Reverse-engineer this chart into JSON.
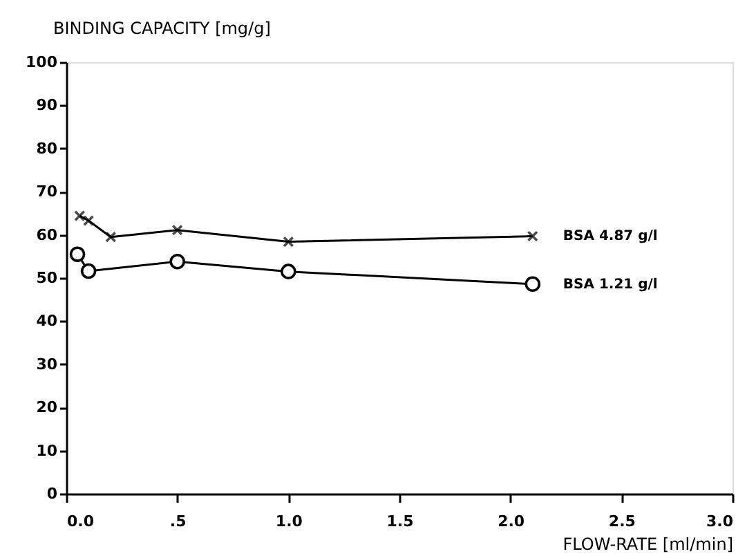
{
  "chart_data": {
    "type": "line",
    "xlabel": "FLOW-RATE [ml/min]",
    "ylabel": "BINDING CAPACITY [mg/g]",
    "xlim": [
      0,
      3
    ],
    "xticks": [
      {
        "value": 0,
        "label": "0.0"
      },
      {
        "value": 0.5,
        "label": ".5"
      },
      {
        "value": 1,
        "label": "1.0"
      },
      1.5,
      {
        "value": 2,
        "label": "2.0"
      },
      2.5,
      {
        "value": 3,
        "label": "3.0"
      }
    ],
    "ylim": [
      0,
      100
    ],
    "yticks": [
      0,
      10,
      20,
      30,
      40,
      50,
      60,
      70,
      80,
      90,
      100
    ],
    "grid": false,
    "line_style": "solid",
    "series": [
      {
        "name": "BSA 4.87 g/l",
        "color": "#000000",
        "marker": "cross",
        "x": [
          0.06,
          0.1,
          0.2,
          0.5,
          1.0,
          2.1
        ],
        "values": [
          64.4,
          63.3,
          59.5,
          61.1,
          58.4,
          59.7
        ]
      },
      {
        "name": "BSA 1.21 g/l",
        "color": "#000000",
        "marker": "circle",
        "x": [
          0.05,
          0.1,
          0.5,
          1.0,
          2.1
        ],
        "values": [
          55.5,
          51.6,
          53.8,
          51.5,
          48.6
        ]
      }
    ]
  }
}
